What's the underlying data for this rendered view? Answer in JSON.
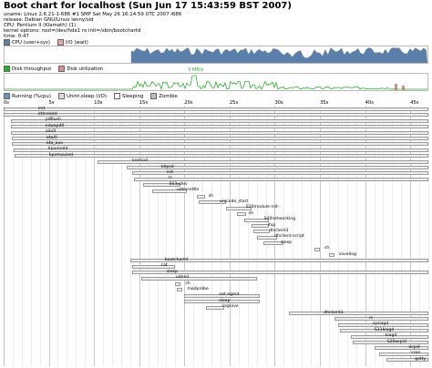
{
  "header": {
    "title": "Boot chart for localhost (Sun Jun 17 15:43:59 BST 2007)",
    "uname": "uname: Linux 2.6.21-1-686 #1 SMP Sat May 26 16:14:59 UTC 2007 i686",
    "release": "release: Debian GNU/Linux lenny/sid",
    "cpu": "CPU: Pentium II (Klamath) (1)",
    "kernel_options": "kernel options: root=/dev/hda1 ro init=/sbin/bootchartd",
    "time": "time: 0:47"
  },
  "cpu_legend": {
    "user_sys": "CPU (user+sys)",
    "io_wait": "I/O (wait)"
  },
  "disk_legend": {
    "throughput": "Disk throughput",
    "utilization": "Disk utilization",
    "peak": "3 MB/s"
  },
  "process_legend": {
    "running": "Running (%cpu)",
    "uninterruptible": "Unint.sleep (I/O)",
    "sleeping": "Sleeping",
    "zombie": "Zombie"
  },
  "colors": {
    "cpu": "#5b7fa8",
    "io": "#e8a8a8",
    "disk_throughput": "#2bb02b",
    "disk_utilization": "#e08888",
    "running": "#6f8fc4",
    "uninterruptible": "#dddddd",
    "sleeping": "#f3f3f3",
    "zombie": "#bcbcbc",
    "grid": "#d8d8d8"
  },
  "time_axis": [
    "0s",
    "5s",
    "10s",
    "15s",
    "20s",
    "25s",
    "30s",
    "35s",
    "40s",
    "45s"
  ],
  "processes": [
    {
      "name": "init",
      "start": 0,
      "end": 47
    },
    {
      "name": "kthreadd",
      "start": 0,
      "end": 47
    },
    {
      "name": "pdflush",
      "start": 0.8,
      "end": 47
    },
    {
      "name": "kswapd0",
      "start": 0.8,
      "end": 47
    },
    {
      "name": "aio/0",
      "start": 0.8,
      "end": 47
    },
    {
      "name": "ata/0",
      "start": 0.9,
      "end": 47
    },
    {
      "name": "ata_aux",
      "start": 0.9,
      "end": 47
    },
    {
      "name": "kjournald",
      "start": 1.1,
      "end": 47
    },
    {
      "name": "kpsmoused",
      "start": 1.2,
      "end": 47
    },
    {
      "name": "kseriod",
      "start": 10.4,
      "end": 47
    },
    {
      "name": "khpsd",
      "start": 13.6,
      "end": 47
    },
    {
      "name": "init",
      "start": 14.2,
      "end": 47
    },
    {
      "name": "rc",
      "start": 14.4,
      "end": 47
    },
    {
      "name": "S03udev",
      "start": 15.4,
      "end": 19.6
    },
    {
      "name": "udevsettle",
      "start": 16.4,
      "end": 20.3
    },
    {
      "name": "sh",
      "start": 21.4,
      "end": 22.3
    },
    {
      "name": "unicode_start",
      "start": 21.6,
      "end": 24.6
    },
    {
      "name": "S20module-init-",
      "start": 24.6,
      "end": 27.4
    },
    {
      "name": "sh",
      "start": 25.8,
      "end": 26.8
    },
    {
      "name": "S40networking",
      "start": 26.6,
      "end": 29.4
    },
    {
      "name": "ifup",
      "start": 27.4,
      "end": 29.4
    },
    {
      "name": "dhclient3",
      "start": 27.6,
      "end": 29.5
    },
    {
      "name": "dhclient-script",
      "start": 28.0,
      "end": 30.3
    },
    {
      "name": "sleep",
      "start": 28.7,
      "end": 31.0
    },
    {
      "name": "sh",
      "start": 34.4,
      "end": 35.0
    },
    {
      "name": "saveilog",
      "start": 36.0,
      "end": 36.6
    },
    {
      "name": "bootchartd",
      "start": 14.0,
      "end": 47
    },
    {
      "name": "cat",
      "start": 14.2,
      "end": 19.0
    },
    {
      "name": "sleep",
      "start": 14.2,
      "end": 47
    },
    {
      "name": "udevd",
      "start": 15.2,
      "end": 28.0
    },
    {
      "name": "sh",
      "start": 19.0,
      "end": 19.6
    },
    {
      "name": "modprobe",
      "start": 19.2,
      "end": 19.8
    },
    {
      "name": "net.agent",
      "start": 20.0,
      "end": 28.3
    },
    {
      "name": "sleep",
      "start": 20.0,
      "end": 28.3
    },
    {
      "name": "logsave",
      "start": 22.4,
      "end": 24.4
    },
    {
      "name": "dhclient3",
      "start": 31.6,
      "end": 47
    },
    {
      "name": "rc",
      "start": 36.6,
      "end": 47
    },
    {
      "name": "syslogd",
      "start": 37.0,
      "end": 47
    },
    {
      "name": "S11klogd",
      "start": 37.2,
      "end": 47
    },
    {
      "name": "klogd",
      "start": 38.4,
      "end": 47
    },
    {
      "name": "S20acpid",
      "start": 38.6,
      "end": 47
    },
    {
      "name": "acpid",
      "start": 41.0,
      "end": 47
    },
    {
      "name": "cron",
      "start": 41.6,
      "end": 47
    },
    {
      "name": "getty",
      "start": 42.4,
      "end": 47
    }
  ]
}
